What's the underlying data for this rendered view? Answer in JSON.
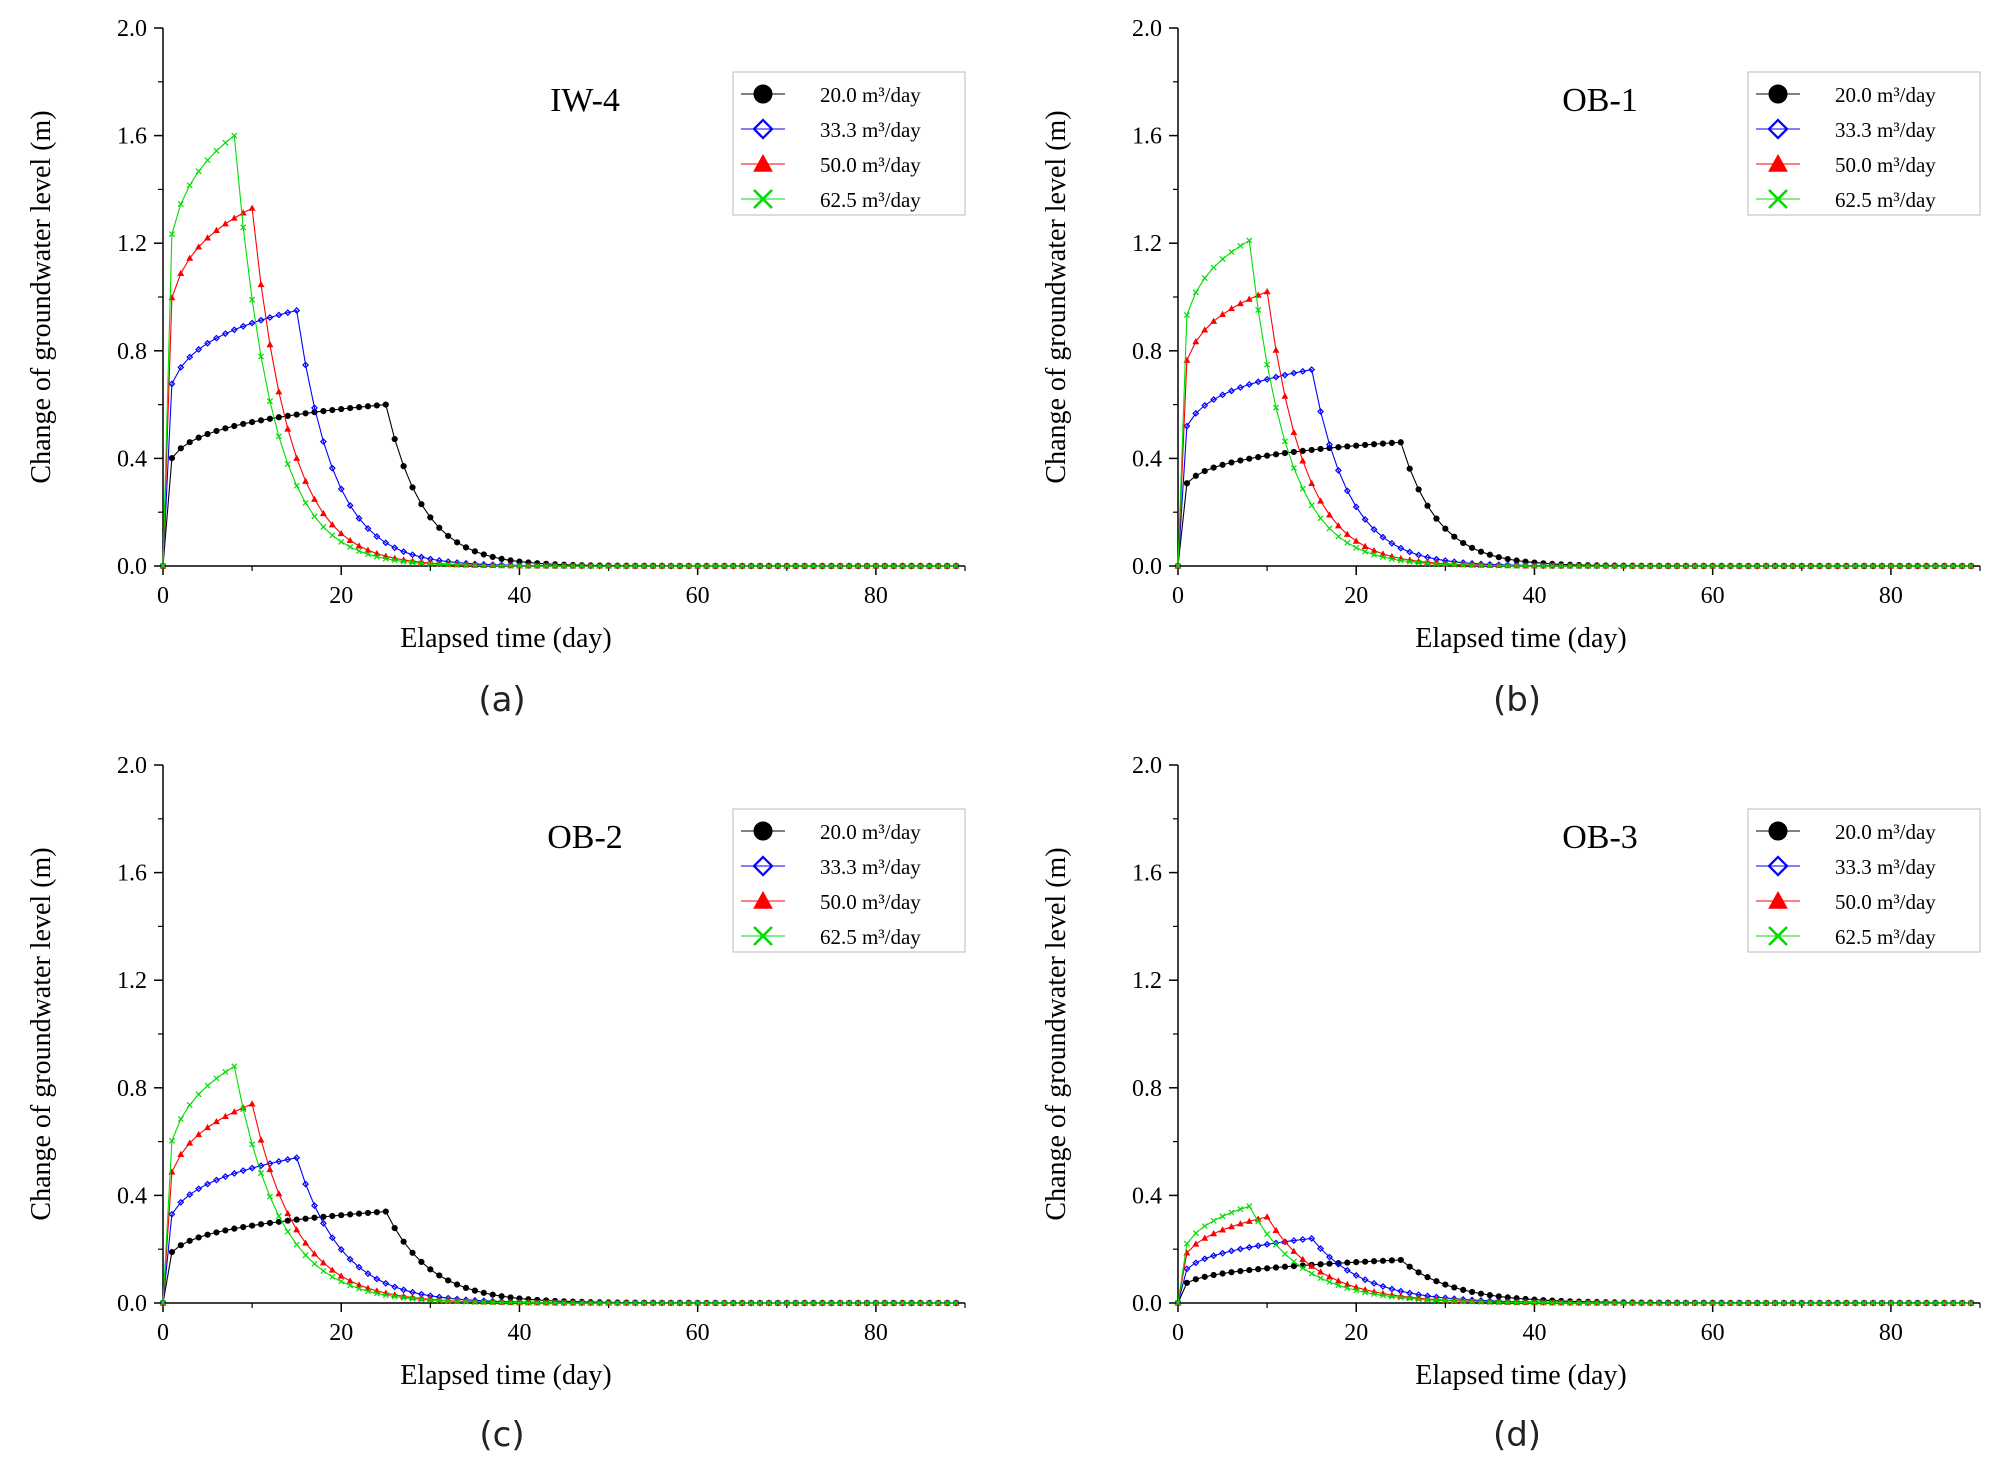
{
  "figure": {
    "series_names": [
      "20.0 m³/day",
      "33.3 m³/day",
      "50.0 m³/day",
      "62.5 m³/day"
    ],
    "series_colors": [
      "#000000",
      "#0000ff",
      "#ff0000",
      "#00dd00"
    ],
    "marker_types": [
      "circle",
      "diamond",
      "triangle",
      "cross"
    ]
  },
  "chart_data": [
    {
      "type": "line",
      "panel": "(a)",
      "label": "IW-4",
      "title": "",
      "xlabel": "Elapsed time (day)",
      "ylabel": "Change of groundwater level (m)",
      "xlim": [
        0,
        90
      ],
      "ylim": [
        0.0,
        2.0
      ],
      "xticks": [
        0,
        20,
        40,
        60,
        80
      ],
      "yticks": [
        "0.0",
        "0.4",
        "0.8",
        "1.2",
        "1.6",
        "2.0"
      ],
      "legend_position": "top-right",
      "x_step": 1,
      "series": [
        {
          "name": "20.0 m³/day",
          "t_stop": 25,
          "peak": 0.6,
          "rise": 0.4,
          "decay": 0.24
        },
        {
          "name": "33.3 m³/day",
          "t_stop": 15,
          "peak": 0.95,
          "rise": 0.4,
          "decay": 0.24
        },
        {
          "name": "50.0 m³/day",
          "t_stop": 10,
          "peak": 1.33,
          "rise": 0.4,
          "decay": 0.24
        },
        {
          "name": "62.5 m³/day",
          "t_stop": 8,
          "peak": 1.6,
          "rise": 0.4,
          "decay": 0.24
        }
      ]
    },
    {
      "type": "line",
      "panel": "(b)",
      "label": "OB-1",
      "title": "",
      "xlabel": "Elapsed time (day)",
      "ylabel": "Change of groundwater level (m)",
      "xlim": [
        0,
        90
      ],
      "ylim": [
        0.0,
        2.0
      ],
      "xticks": [
        0,
        20,
        40,
        60,
        80
      ],
      "yticks": [
        "0.0",
        "0.4",
        "0.8",
        "1.2",
        "1.6",
        "2.0"
      ],
      "legend_position": "top-right",
      "x_step": 1,
      "series": [
        {
          "name": "20.0 m³/day",
          "t_stop": 25,
          "peak": 0.46,
          "rise": 0.4,
          "decay": 0.24
        },
        {
          "name": "33.3 m³/day",
          "t_stop": 15,
          "peak": 0.73,
          "rise": 0.4,
          "decay": 0.24
        },
        {
          "name": "50.0 m³/day",
          "t_stop": 10,
          "peak": 1.02,
          "rise": 0.4,
          "decay": 0.24
        },
        {
          "name": "62.5 m³/day",
          "t_stop": 8,
          "peak": 1.21,
          "rise": 0.4,
          "decay": 0.24
        }
      ]
    },
    {
      "type": "line",
      "panel": "(c)",
      "label": "OB-2",
      "title": "",
      "xlabel": "Elapsed time (day)",
      "ylabel": "Change of groundwater level (m)",
      "xlim": [
        0,
        90
      ],
      "ylim": [
        0.0,
        2.0
      ],
      "xticks": [
        0,
        20,
        40,
        60,
        80
      ],
      "yticks": [
        "0.0",
        "0.4",
        "0.8",
        "1.2",
        "1.6",
        "2.0"
      ],
      "legend_position": "top-right",
      "x_step": 1,
      "series": [
        {
          "name": "20.0 m³/day",
          "t_stop": 25,
          "peak": 0.34,
          "rise": 0.8,
          "decay": 0.2
        },
        {
          "name": "33.3 m³/day",
          "t_stop": 15,
          "peak": 0.54,
          "rise": 0.8,
          "decay": 0.2
        },
        {
          "name": "50.0 m³/day",
          "t_stop": 10,
          "peak": 0.74,
          "rise": 0.8,
          "decay": 0.2
        },
        {
          "name": "62.5 m³/day",
          "t_stop": 8,
          "peak": 0.88,
          "rise": 0.8,
          "decay": 0.2
        }
      ]
    },
    {
      "type": "line",
      "panel": "(d)",
      "label": "OB-3",
      "title": "",
      "xlabel": "Elapsed time (day)",
      "ylabel": "Change of groundwater level (m)",
      "xlim": [
        0,
        90
      ],
      "ylim": [
        0.0,
        2.0
      ],
      "xticks": [
        0,
        20,
        40,
        60,
        80
      ],
      "yticks": [
        "0.0",
        "0.4",
        "0.8",
        "1.2",
        "1.6",
        "2.0"
      ],
      "legend_position": "top-right",
      "x_step": 1,
      "series": [
        {
          "name": "20.0 m³/day",
          "t_stop": 25,
          "peak": 0.16,
          "rise": 1.6,
          "decay": 0.17
        },
        {
          "name": "33.3 m³/day",
          "t_stop": 15,
          "peak": 0.24,
          "rise": 1.6,
          "decay": 0.17
        },
        {
          "name": "50.0 m³/day",
          "t_stop": 10,
          "peak": 0.32,
          "rise": 1.6,
          "decay": 0.17
        },
        {
          "name": "62.5 m³/day",
          "t_stop": 8,
          "peak": 0.36,
          "rise": 1.6,
          "decay": 0.17
        }
      ]
    }
  ]
}
